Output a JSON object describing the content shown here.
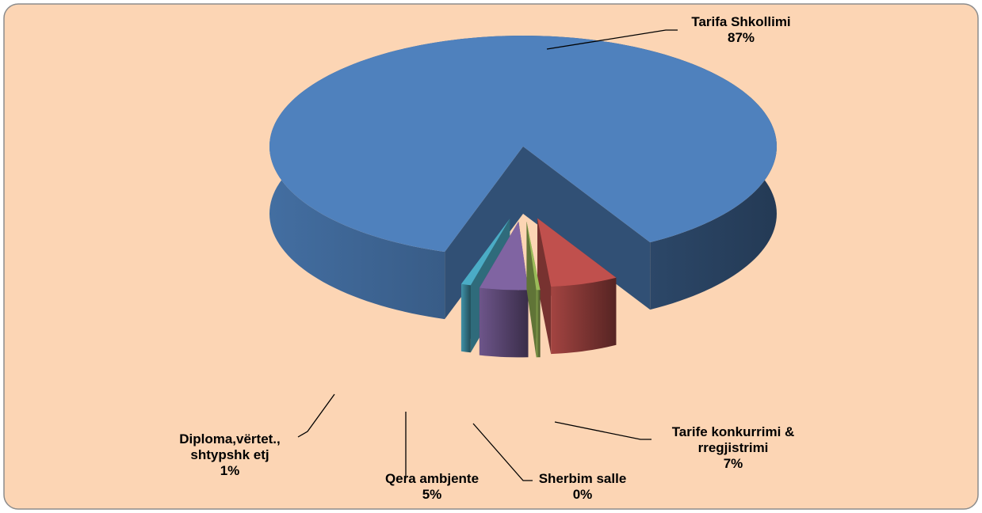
{
  "chart_data": {
    "type": "pie3d",
    "categories": [
      "Tarifa Shkollimi",
      "Tarife konkurrimi & rregjistrimi",
      "Sherbim salle",
      "Qera ambjente",
      "Diploma,vërtet., shtypshk etj"
    ],
    "values": [
      87,
      7,
      0.4,
      5,
      1
    ],
    "value_labels": [
      "87%",
      "7%",
      "0%",
      "5%",
      "1%"
    ],
    "colors": [
      "#4f81bd",
      "#c0504d",
      "#9bbb59",
      "#8064a2",
      "#4bacc6"
    ],
    "background": "#fcd5b4"
  }
}
